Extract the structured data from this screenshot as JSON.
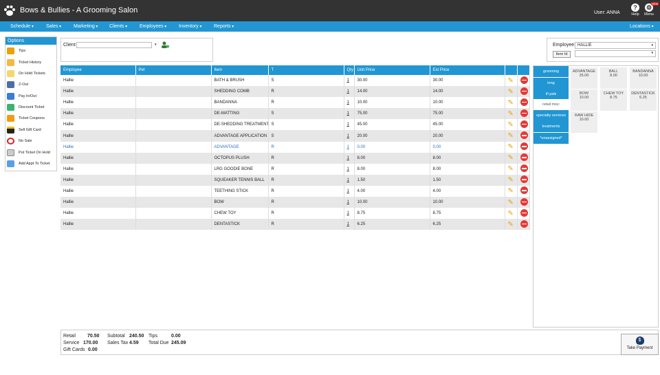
{
  "app": {
    "title": "Bows & Bullies - A Grooming Salon",
    "user": "User: ANNA",
    "help": "Help",
    "menu": "Menu",
    "new_badge": "NEW"
  },
  "nav": {
    "items": [
      "Schedule",
      "Sales",
      "Marketing",
      "Clients",
      "Employees",
      "Inventory",
      "Reports"
    ],
    "right": "Locations"
  },
  "options": {
    "title": "Options",
    "items": [
      "Tips",
      "Ticket History",
      "On Hold Tickets",
      "Z-Out",
      "Pay In/Out",
      "Discount Ticket",
      "Ticket Coupons",
      "Sell Gift Card",
      "No Sale",
      "Put Ticket On Hold",
      "Add Appt To Ticket"
    ]
  },
  "client": {
    "label": "Client",
    "value": ""
  },
  "employee": {
    "label": "Employee:",
    "value": "HALLIE",
    "item_id_button": "Item Id",
    "item_id_value": ""
  },
  "table": {
    "headers": [
      "Employee",
      "Pet",
      "Item",
      "T",
      "Qty",
      "Unit Price",
      "Ext Price",
      "",
      ""
    ],
    "rows": [
      [
        "Hallie",
        "",
        "BATH & BRUSH",
        "S",
        "1",
        "30.00",
        "30.00"
      ],
      [
        "Hallie",
        "",
        "SHEDDING COMB",
        "R",
        "1",
        "14.00",
        "14.00"
      ],
      [
        "Hallie",
        "",
        "BANDANNA",
        "R",
        "1",
        "10.00",
        "10.00"
      ],
      [
        "Hallie",
        "",
        "DE-MATTING",
        "S",
        "1",
        "75.00",
        "75.00"
      ],
      [
        "Hallie",
        "",
        "DE-SHEDDING TREATMENT",
        "S",
        "1",
        "45.00",
        "45.00"
      ],
      [
        "Hallie",
        "",
        "ADVANTAGE APPLICATION",
        "S",
        "1",
        "20.00",
        "20.00"
      ],
      [
        "Hallie",
        "",
        "ADVANTAGE",
        "R",
        "1",
        "0.00",
        "0.00"
      ],
      [
        "Hallie",
        "",
        "OCTOPUS PLUSH",
        "R",
        "1",
        "8.00",
        "8.00"
      ],
      [
        "Hallie",
        "",
        "LRG GOODIE BONE",
        "R",
        "1",
        "8.00",
        "8.00"
      ],
      [
        "Hallie",
        "",
        "SQUEAKER TENNIS BALL",
        "R",
        "1",
        "1.50",
        "1.50"
      ],
      [
        "Hallie",
        "",
        "TEETHING STICK",
        "R",
        "1",
        "4.00",
        "4.00"
      ],
      [
        "Hallie",
        "",
        "BOW",
        "R",
        "1",
        "10.00",
        "10.00"
      ],
      [
        "Hallie",
        "",
        "CHEW TOY",
        "R",
        "1",
        "8.75",
        "8.75"
      ],
      [
        "Hallie",
        "",
        "DENTASTICK",
        "R",
        "1",
        "6.25",
        "6.25"
      ]
    ],
    "selected_row": 6,
    "colors": {
      "header": "#2196d3",
      "selected_text": "#2a72c8",
      "edit_icon": "#e8a20c",
      "delete_icon": "#e53935"
    }
  },
  "categories": [
    {
      "label": "grooming",
      "style": "blue"
    },
    {
      "label": "long",
      "style": "blue"
    },
    {
      "label": "l/l pals",
      "style": "blue"
    },
    {
      "label": "retail misc",
      "style": "white"
    },
    {
      "label": "specialty services",
      "style": "blue"
    },
    {
      "label": "treatments",
      "style": "blue"
    },
    {
      "label": "*unassigned*",
      "style": "blue"
    }
  ],
  "tiles": [
    {
      "name": "ADVANTAGE",
      "price": "25.00"
    },
    {
      "name": "BALL",
      "price": "8.00"
    },
    {
      "name": "BANDANNA",
      "price": "10.00"
    },
    {
      "name": "BOW",
      "price": "10.00"
    },
    {
      "name": "CHEW TOY",
      "price": "8.75"
    },
    {
      "name": "DENTASTICK",
      "price": "6.25"
    },
    {
      "name": "RAW HIDE",
      "price": "10.00"
    }
  ],
  "totals": {
    "retail_label": "Retail",
    "retail": "70.50",
    "service_label": "Service",
    "service": "170.00",
    "giftcards_label": "Gift Cards",
    "giftcards": "0.00",
    "subtotal_label": "Subtotal",
    "subtotal": "240.50",
    "salestax_label": "Sales Tax",
    "salestax": "4.59",
    "tips_label": "Tips",
    "tips": "0.00",
    "totaldue_label": "Total Due",
    "totaldue": "245.09"
  },
  "take_payment": "Take Payment",
  "theme": {
    "accent": "#2196d3",
    "topbar": "#333333"
  }
}
